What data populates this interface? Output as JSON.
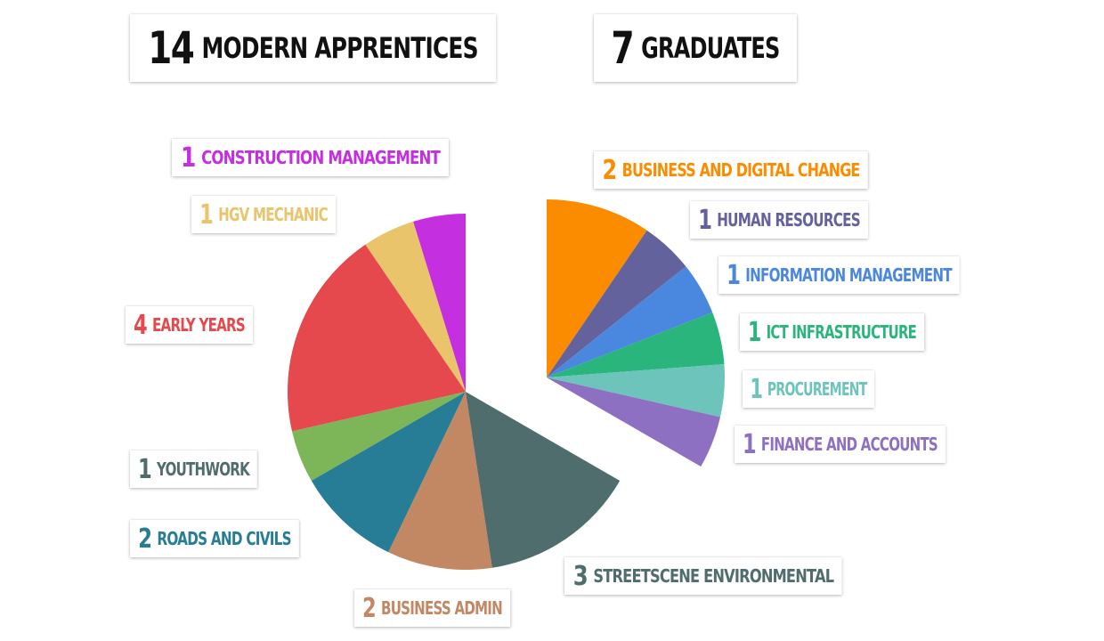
{
  "header": {
    "apprentices": {
      "count": "14",
      "label": "Modern Apprentices"
    },
    "graduates": {
      "count": "7",
      "label": "Graduates"
    }
  },
  "chart_data": [
    {
      "type": "pie",
      "group": "Modern Apprentices",
      "start_angle_deg": 0,
      "direction": "counterclockwise",
      "slices": [
        {
          "label": "Construction Management",
          "value": 1,
          "color": "#c42fe0"
        },
        {
          "label": "HGV Mechanic",
          "value": 1,
          "color": "#e9c46a"
        },
        {
          "label": "Early Years",
          "value": 4,
          "color": "#e5484d"
        },
        {
          "label": "Youthwork",
          "value": 1,
          "color": "#7db658"
        },
        {
          "label": "Roads and Civils",
          "value": 2,
          "color": "#267d95"
        },
        {
          "label": "Business Admin",
          "value": 2,
          "color": "#c28763"
        },
        {
          "label": "Streetscene Environmental",
          "value": 3,
          "color": "#4f6d6c"
        }
      ]
    },
    {
      "type": "pie",
      "group": "Graduates",
      "start_angle_deg": 0,
      "direction": "clockwise",
      "slices": [
        {
          "label": "Business and Digital Change",
          "value": 2,
          "color": "#fb8c00"
        },
        {
          "label": "Human Resources",
          "value": 1,
          "color": "#63629c"
        },
        {
          "label": "Information Management",
          "value": 1,
          "color": "#4a88e0"
        },
        {
          "label": "ICT Infrastructure",
          "value": 1,
          "color": "#29b57c"
        },
        {
          "label": "Procurement",
          "value": 1,
          "color": "#6cc4bb"
        },
        {
          "label": "Finance and Accounts",
          "value": 1,
          "color": "#8e70c2"
        }
      ]
    }
  ]
}
